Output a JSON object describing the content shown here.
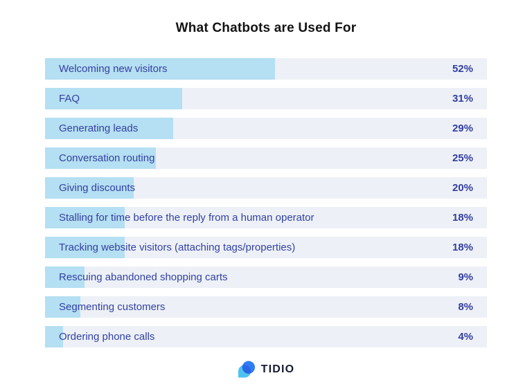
{
  "title": "What Chatbots are Used For",
  "chart_data": {
    "type": "bar",
    "orientation": "horizontal",
    "title": "What Chatbots are Used For",
    "categories": [
      "Welcoming new visitors",
      "FAQ",
      "Generating leads",
      "Conversation routing",
      "Giving discounts",
      "Stalling for time before the reply from a human operator",
      "Tracking website visitors (attaching tags/properties)",
      "Rescuing abandoned shopping carts",
      "Segmenting customers",
      "Ordering phone calls"
    ],
    "values": [
      52,
      31,
      29,
      25,
      20,
      18,
      18,
      9,
      8,
      4
    ],
    "display_values": [
      "52%",
      "31%",
      "29%",
      "25%",
      "20%",
      "18%",
      "18%",
      "9%",
      "8%",
      "4%"
    ],
    "value_suffix": "%",
    "xlim": [
      0,
      100
    ],
    "grid": false,
    "legend": "none",
    "xlabel": "",
    "ylabel": ""
  },
  "footer": {
    "brand": "TIDIO",
    "logo_icon": "tidio-chat-bubble-icon"
  },
  "colors": {
    "bar_fill": "#B5DFF2",
    "row_bg": "#EDF1F7",
    "label_text": "#3340A3",
    "value_text": "#333DA0",
    "title_text": "#131313",
    "logo_navy": "#151B33",
    "logo_blue": "#2E7CF6",
    "logo_cyan": "#4EC3F2",
    "logo_overlap": "#2A66E8",
    "page_bg": "#FFFFFF"
  }
}
